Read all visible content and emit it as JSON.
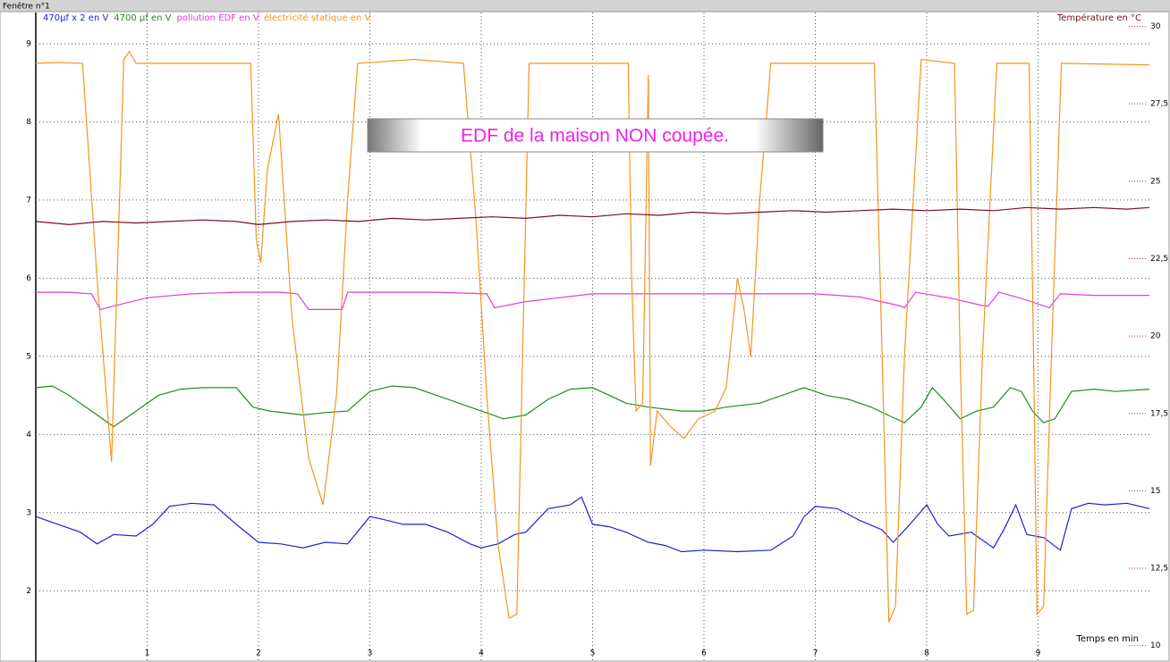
{
  "window_title": "Fenêtre n°1",
  "chart_data": {
    "type": "line",
    "annotation": "EDF de la maison NON coupée.",
    "x_label": "Temps en min",
    "y2_label": "Température en °C",
    "xlim": [
      0,
      10
    ],
    "xticks": [
      1,
      2,
      3,
      4,
      5,
      6,
      7,
      8,
      9
    ],
    "ylim": [
      1.1,
      9.4
    ],
    "yticks": [
      2,
      3,
      4,
      5,
      6,
      7,
      8,
      9
    ],
    "y2lim": [
      9.5,
      30.45
    ],
    "y2ticks": [
      10,
      {
        "value": 12.5,
        "label": "12,5"
      },
      15,
      {
        "value": 17.5,
        "label": "17,5"
      },
      20,
      {
        "value": 22.5,
        "label": "22,5"
      },
      25,
      {
        "value": 27.5,
        "label": "27,5"
      },
      30
    ],
    "grid": true,
    "series": [
      {
        "name": "470µf x 2 en V",
        "color": "#1f1fd6",
        "x": [
          0,
          0.2,
          0.4,
          0.55,
          0.7,
          0.9,
          1.05,
          1.2,
          1.4,
          1.6,
          1.8,
          2.0,
          2.2,
          2.4,
          2.6,
          2.8,
          3.0,
          3.1,
          3.3,
          3.5,
          3.7,
          3.9,
          4.0,
          4.15,
          4.3,
          4.4,
          4.6,
          4.8,
          4.9,
          5.0,
          5.15,
          5.3,
          5.5,
          5.65,
          5.8,
          6.0,
          6.3,
          6.6,
          6.8,
          6.9,
          7.0,
          7.2,
          7.4,
          7.6,
          7.7,
          7.85,
          8.0,
          8.1,
          8.2,
          8.4,
          8.6,
          8.7,
          8.8,
          8.9,
          9.05,
          9.2,
          9.3,
          9.45,
          9.6,
          9.8,
          10
        ],
        "values": [
          2.95,
          2.85,
          2.75,
          2.6,
          2.72,
          2.7,
          2.85,
          3.08,
          3.12,
          3.1,
          2.85,
          2.62,
          2.6,
          2.55,
          2.62,
          2.6,
          2.95,
          2.92,
          2.85,
          2.85,
          2.75,
          2.6,
          2.55,
          2.6,
          2.72,
          2.75,
          3.05,
          3.1,
          3.2,
          2.85,
          2.82,
          2.75,
          2.62,
          2.58,
          2.5,
          2.52,
          2.5,
          2.52,
          2.7,
          2.95,
          3.08,
          3.05,
          2.9,
          2.78,
          2.62,
          2.85,
          3.1,
          2.85,
          2.7,
          2.75,
          2.55,
          2.8,
          3.1,
          2.72,
          2.68,
          2.52,
          3.05,
          3.12,
          3.1,
          3.12,
          3.05
        ]
      },
      {
        "name": "4700 µf en V",
        "color": "#1d8f1d",
        "x": [
          0,
          0.15,
          0.3,
          0.5,
          0.7,
          0.9,
          1.1,
          1.3,
          1.5,
          1.8,
          1.95,
          2.1,
          2.4,
          2.6,
          2.8,
          3.0,
          3.2,
          3.4,
          3.6,
          3.8,
          4.0,
          4.2,
          4.4,
          4.6,
          4.8,
          5.0,
          5.15,
          5.3,
          5.5,
          5.8,
          6.0,
          6.2,
          6.5,
          6.7,
          6.9,
          7.1,
          7.3,
          7.5,
          7.65,
          7.8,
          7.95,
          8.05,
          8.15,
          8.3,
          8.45,
          8.6,
          8.75,
          8.85,
          8.95,
          9.05,
          9.15,
          9.3,
          9.5,
          9.7,
          10
        ],
        "values": [
          4.6,
          4.62,
          4.5,
          4.3,
          4.1,
          4.3,
          4.5,
          4.58,
          4.6,
          4.6,
          4.35,
          4.3,
          4.25,
          4.28,
          4.3,
          4.55,
          4.62,
          4.6,
          4.5,
          4.4,
          4.3,
          4.2,
          4.25,
          4.45,
          4.58,
          4.6,
          4.5,
          4.4,
          4.35,
          4.3,
          4.3,
          4.35,
          4.4,
          4.5,
          4.6,
          4.5,
          4.45,
          4.35,
          4.25,
          4.15,
          4.35,
          4.6,
          4.45,
          4.2,
          4.3,
          4.35,
          4.6,
          4.55,
          4.3,
          4.15,
          4.2,
          4.55,
          4.58,
          4.55,
          4.58
        ]
      },
      {
        "name": "pollution EDF en V",
        "color": "#e03ee0",
        "x": [
          0,
          0.3,
          0.5,
          0.58,
          0.8,
          1.0,
          1.4,
          1.8,
          2.2,
          2.35,
          2.45,
          2.75,
          2.8,
          3.2,
          3.6,
          4.05,
          4.12,
          4.4,
          4.7,
          5.0,
          5.5,
          6.0,
          6.5,
          7.0,
          7.4,
          7.75,
          7.8,
          7.9,
          8.2,
          8.5,
          8.55,
          8.65,
          8.9,
          9.1,
          9.2,
          9.5,
          10
        ],
        "values": [
          5.82,
          5.82,
          5.8,
          5.6,
          5.68,
          5.75,
          5.8,
          5.82,
          5.82,
          5.8,
          5.6,
          5.6,
          5.82,
          5.82,
          5.82,
          5.8,
          5.62,
          5.7,
          5.75,
          5.8,
          5.8,
          5.8,
          5.8,
          5.8,
          5.76,
          5.65,
          5.62,
          5.82,
          5.75,
          5.65,
          5.64,
          5.82,
          5.72,
          5.62,
          5.8,
          5.78,
          5.78
        ]
      },
      {
        "name": "électricité statique en V",
        "color": "#f7941d",
        "x": [
          0,
          0.2,
          0.42,
          0.55,
          0.68,
          0.72,
          0.79,
          0.84,
          0.9,
          1.5,
          1.93,
          1.98,
          2.02,
          2.08,
          2.18,
          2.3,
          2.45,
          2.58,
          2.7,
          2.8,
          2.89,
          3.4,
          3.84,
          3.95,
          4.05,
          4.15,
          4.25,
          4.32,
          4.43,
          5.0,
          5.32,
          5.35,
          5.39,
          5.45,
          5.5,
          5.52,
          5.58,
          5.7,
          5.82,
          5.95,
          6.1,
          6.2,
          6.3,
          6.36,
          6.42,
          6.5,
          6.6,
          7.0,
          7.53,
          7.6,
          7.66,
          7.72,
          7.8,
          7.95,
          8.25,
          8.3,
          8.36,
          8.42,
          8.5,
          8.63,
          8.92,
          8.96,
          8.99,
          9.05,
          9.12,
          9.21,
          10
        ],
        "values": [
          8.75,
          8.76,
          8.75,
          6.0,
          3.65,
          5.5,
          8.8,
          8.9,
          8.75,
          8.75,
          8.75,
          6.5,
          6.2,
          7.4,
          8.1,
          5.5,
          3.7,
          3.1,
          4.5,
          7.0,
          8.75,
          8.8,
          8.75,
          6.8,
          4.5,
          2.6,
          1.65,
          1.7,
          8.75,
          8.75,
          8.75,
          6.0,
          4.3,
          4.4,
          8.6,
          3.6,
          4.3,
          4.1,
          3.95,
          4.2,
          4.3,
          4.6,
          6.0,
          5.6,
          5.0,
          7.0,
          8.75,
          8.75,
          8.75,
          5.0,
          1.6,
          1.8,
          5.0,
          8.8,
          8.75,
          5.0,
          1.7,
          1.75,
          5.0,
          8.75,
          8.75,
          5.0,
          1.7,
          1.8,
          5.0,
          8.75,
          8.73
        ]
      },
      {
        "name": "Température en °C",
        "color": "#7a1020",
        "axis": "y2",
        "x": [
          0,
          0.3,
          0.6,
          0.9,
          1.2,
          1.5,
          1.8,
          2.0,
          2.3,
          2.6,
          2.9,
          3.2,
          3.5,
          3.8,
          4.1,
          4.4,
          4.7,
          5.0,
          5.3,
          5.6,
          5.9,
          6.2,
          6.5,
          6.8,
          7.1,
          7.4,
          7.7,
          8.0,
          8.3,
          8.6,
          8.9,
          9.2,
          9.5,
          9.8,
          10
        ],
        "values": [
          23.7,
          23.6,
          23.7,
          23.65,
          23.7,
          23.75,
          23.7,
          23.6,
          23.7,
          23.75,
          23.7,
          23.8,
          23.75,
          23.8,
          23.85,
          23.8,
          23.9,
          23.85,
          23.95,
          23.9,
          24.0,
          23.95,
          24.0,
          24.05,
          24.0,
          24.05,
          24.1,
          24.05,
          24.1,
          24.05,
          24.15,
          24.1,
          24.15,
          24.1,
          24.15
        ]
      }
    ]
  }
}
